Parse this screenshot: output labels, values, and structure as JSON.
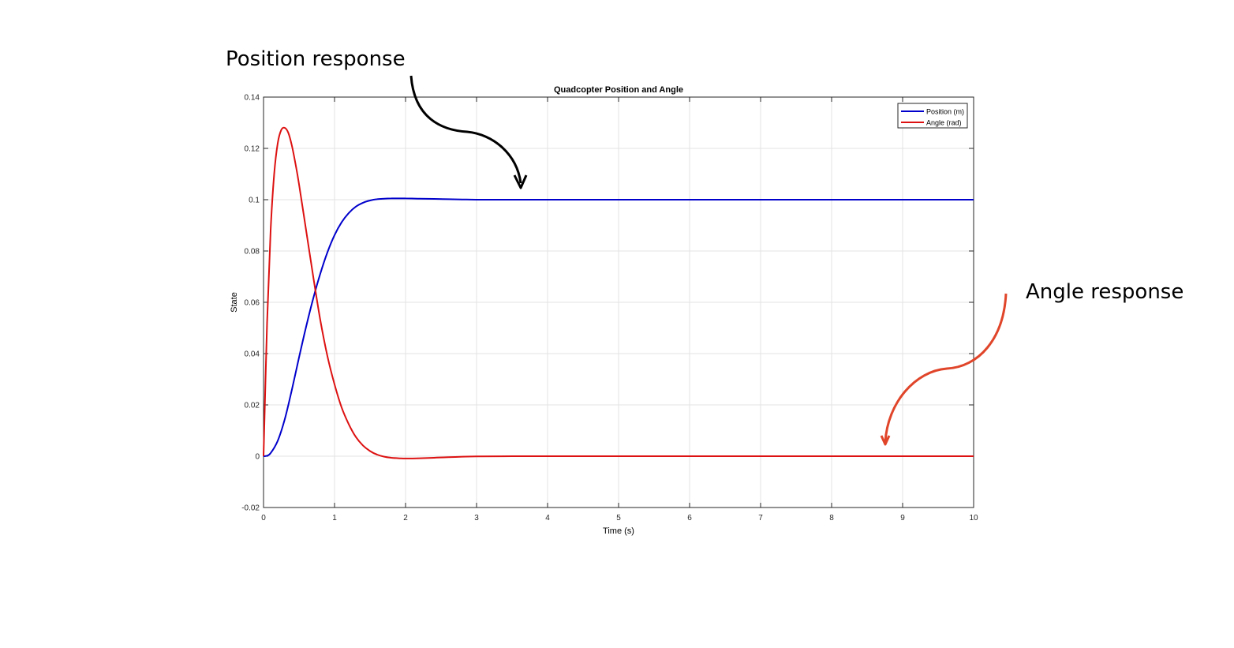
{
  "annotations": {
    "position_label": "Position response",
    "angle_label": "Angle response",
    "position_arrow_color": "#000000",
    "angle_arrow_color": "#e0452a"
  },
  "chart_data": {
    "type": "line",
    "title": "Quadcopter Position and Angle",
    "xlabel": "Time (s)",
    "ylabel": "State",
    "xlim": [
      0,
      10
    ],
    "ylim": [
      -0.02,
      0.14
    ],
    "xticks": [
      "0",
      "1",
      "2",
      "3",
      "4",
      "5",
      "6",
      "7",
      "8",
      "9",
      "10"
    ],
    "yticks": [
      "-0.02",
      "0",
      "0.02",
      "0.04",
      "0.06",
      "0.08",
      "0.1",
      "0.12",
      "0.14"
    ],
    "grid": true,
    "legend_position": "top-right",
    "series": [
      {
        "name": "Position (m)",
        "color": "#0000cc",
        "x": [
          0,
          0.05,
          0.1,
          0.2,
          0.3,
          0.4,
          0.5,
          0.6,
          0.7,
          0.8,
          0.9,
          1.0,
          1.1,
          1.2,
          1.3,
          1.4,
          1.5,
          1.6,
          1.7,
          1.8,
          1.9,
          2.0,
          2.2,
          2.4,
          2.6,
          2.8,
          3.0,
          3.5,
          4.0,
          5.0,
          6.0,
          7.0,
          8.0,
          9.0,
          10.0
        ],
        "y": [
          0,
          0.0002,
          0.0012,
          0.006,
          0.0145,
          0.026,
          0.0385,
          0.0505,
          0.0615,
          0.0712,
          0.0795,
          0.0862,
          0.0912,
          0.0948,
          0.0973,
          0.0988,
          0.0997,
          0.1002,
          0.1004,
          0.1005,
          0.1005,
          0.1005,
          0.1004,
          0.1003,
          0.1002,
          0.1001,
          0.1,
          0.1,
          0.1,
          0.1,
          0.1,
          0.1,
          0.1,
          0.1,
          0.1
        ]
      },
      {
        "name": "Angle (rad)",
        "color": "#dd1111",
        "x": [
          0,
          0.05,
          0.1,
          0.15,
          0.2,
          0.25,
          0.3,
          0.35,
          0.4,
          0.45,
          0.5,
          0.6,
          0.7,
          0.8,
          0.9,
          1.0,
          1.1,
          1.2,
          1.3,
          1.4,
          1.5,
          1.6,
          1.7,
          1.8,
          1.9,
          2.0,
          2.2,
          2.4,
          2.6,
          2.8,
          3.0,
          3.5,
          4.0,
          5.0,
          6.0,
          7.0,
          8.0,
          9.0,
          10.0
        ],
        "y": [
          0,
          0.052,
          0.088,
          0.11,
          0.122,
          0.1272,
          0.128,
          0.126,
          0.121,
          0.114,
          0.106,
          0.088,
          0.07,
          0.053,
          0.039,
          0.028,
          0.019,
          0.0125,
          0.0075,
          0.0042,
          0.002,
          0.0006,
          -0.0002,
          -0.0006,
          -0.0008,
          -0.0009,
          -0.0008,
          -0.0006,
          -0.0004,
          -0.0002,
          -0.0001,
          0,
          0,
          0,
          0,
          0,
          0,
          0,
          0
        ]
      }
    ]
  }
}
